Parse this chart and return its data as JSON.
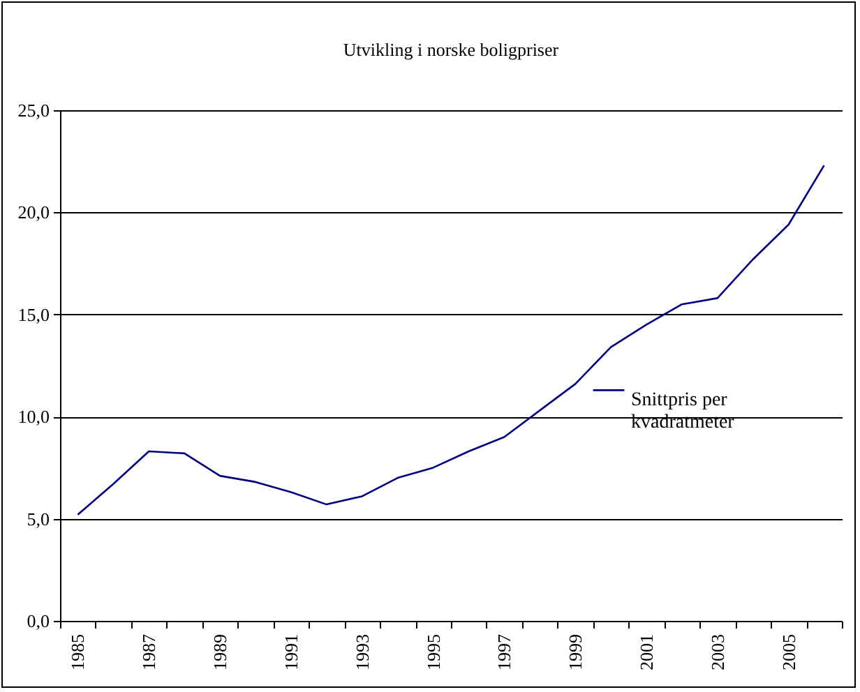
{
  "chart_data": {
    "type": "line",
    "title": "Utvikling i norske boligpriser",
    "categories": [
      "1985",
      null,
      "1987",
      null,
      "1989",
      null,
      "1991",
      null,
      "1993",
      null,
      "1995",
      null,
      "1997",
      null,
      "1999",
      null,
      "2001",
      null,
      "2003",
      null,
      "2005",
      null
    ],
    "series": [
      {
        "name": "Snittpris per kvadratmeter",
        "color": "#000080",
        "values": [
          5.2,
          6.7,
          8.3,
          8.2,
          7.1,
          6.8,
          6.3,
          5.7,
          6.1,
          7.0,
          7.5,
          8.3,
          9.0,
          10.3,
          11.6,
          13.4,
          14.5,
          15.5,
          15.8,
          17.7,
          19.4,
          22.3
        ]
      }
    ],
    "ylim": [
      0,
      25
    ],
    "yticks": [
      {
        "value": 0,
        "label": "0,0"
      },
      {
        "value": 5,
        "label": "5,0"
      },
      {
        "value": 10,
        "label": "10,0"
      },
      {
        "value": 15,
        "label": "15,0"
      },
      {
        "value": 20,
        "label": "20,0"
      },
      {
        "value": 25,
        "label": "25,0"
      }
    ],
    "grid": "y",
    "legend": "right",
    "marker": "none"
  }
}
